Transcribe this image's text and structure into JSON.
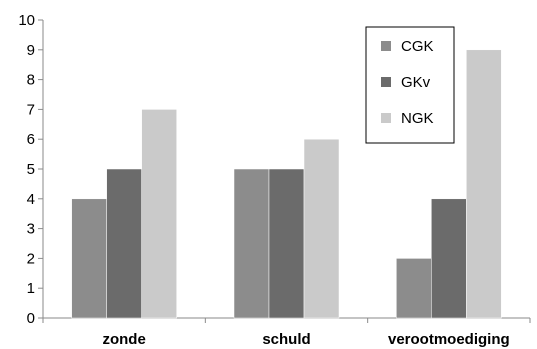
{
  "chart_data": {
    "type": "bar",
    "title": "",
    "xlabel": "",
    "ylabel": "",
    "categories": [
      "zonde",
      "schuld",
      "verootmoediging"
    ],
    "series": [
      {
        "name": "CGK",
        "values": [
          4,
          5,
          2
        ],
        "color": "#8c8c8c"
      },
      {
        "name": "GKv",
        "values": [
          5,
          5,
          4
        ],
        "color": "#6b6b6b"
      },
      {
        "name": "NGK",
        "values": [
          7,
          6,
          9
        ],
        "color": "#cacaca"
      }
    ],
    "ylim": [
      0,
      10
    ],
    "yticks": [
      0,
      1,
      2,
      3,
      4,
      5,
      6,
      7,
      8,
      9,
      10
    ],
    "grid": false,
    "legend_position": "top-right"
  }
}
